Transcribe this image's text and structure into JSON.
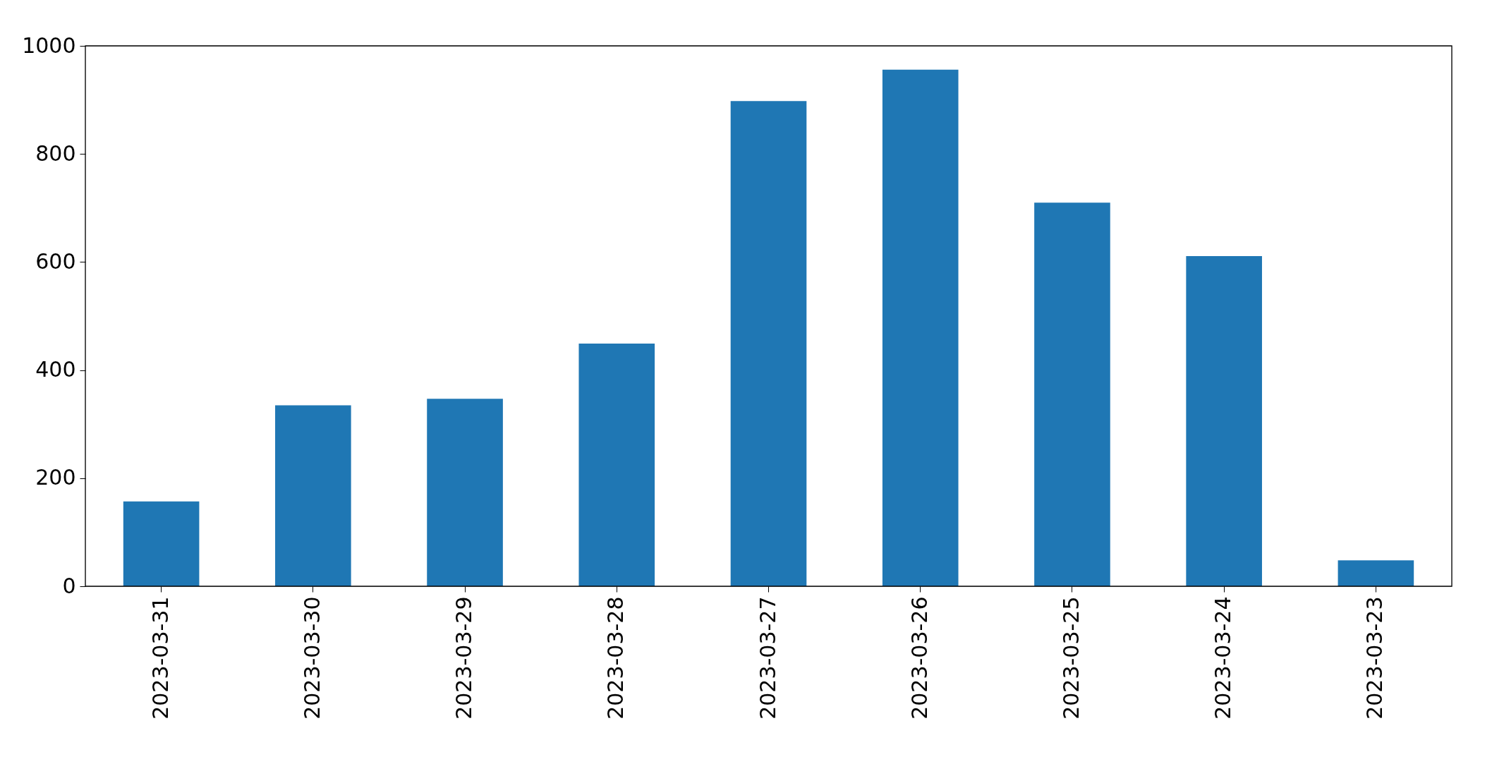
{
  "chart_data": {
    "type": "bar",
    "categories": [
      "2023-03-31",
      "2023-03-30",
      "2023-03-29",
      "2023-03-28",
      "2023-03-27",
      "2023-03-26",
      "2023-03-25",
      "2023-03-24",
      "2023-03-23"
    ],
    "values": [
      157,
      335,
      347,
      449,
      898,
      956,
      710,
      611,
      48
    ],
    "color": "#1f77b4",
    "ylim": [
      0,
      1000
    ],
    "yticks": [
      0,
      200,
      400,
      600,
      800,
      1000
    ],
    "grid": false
  }
}
